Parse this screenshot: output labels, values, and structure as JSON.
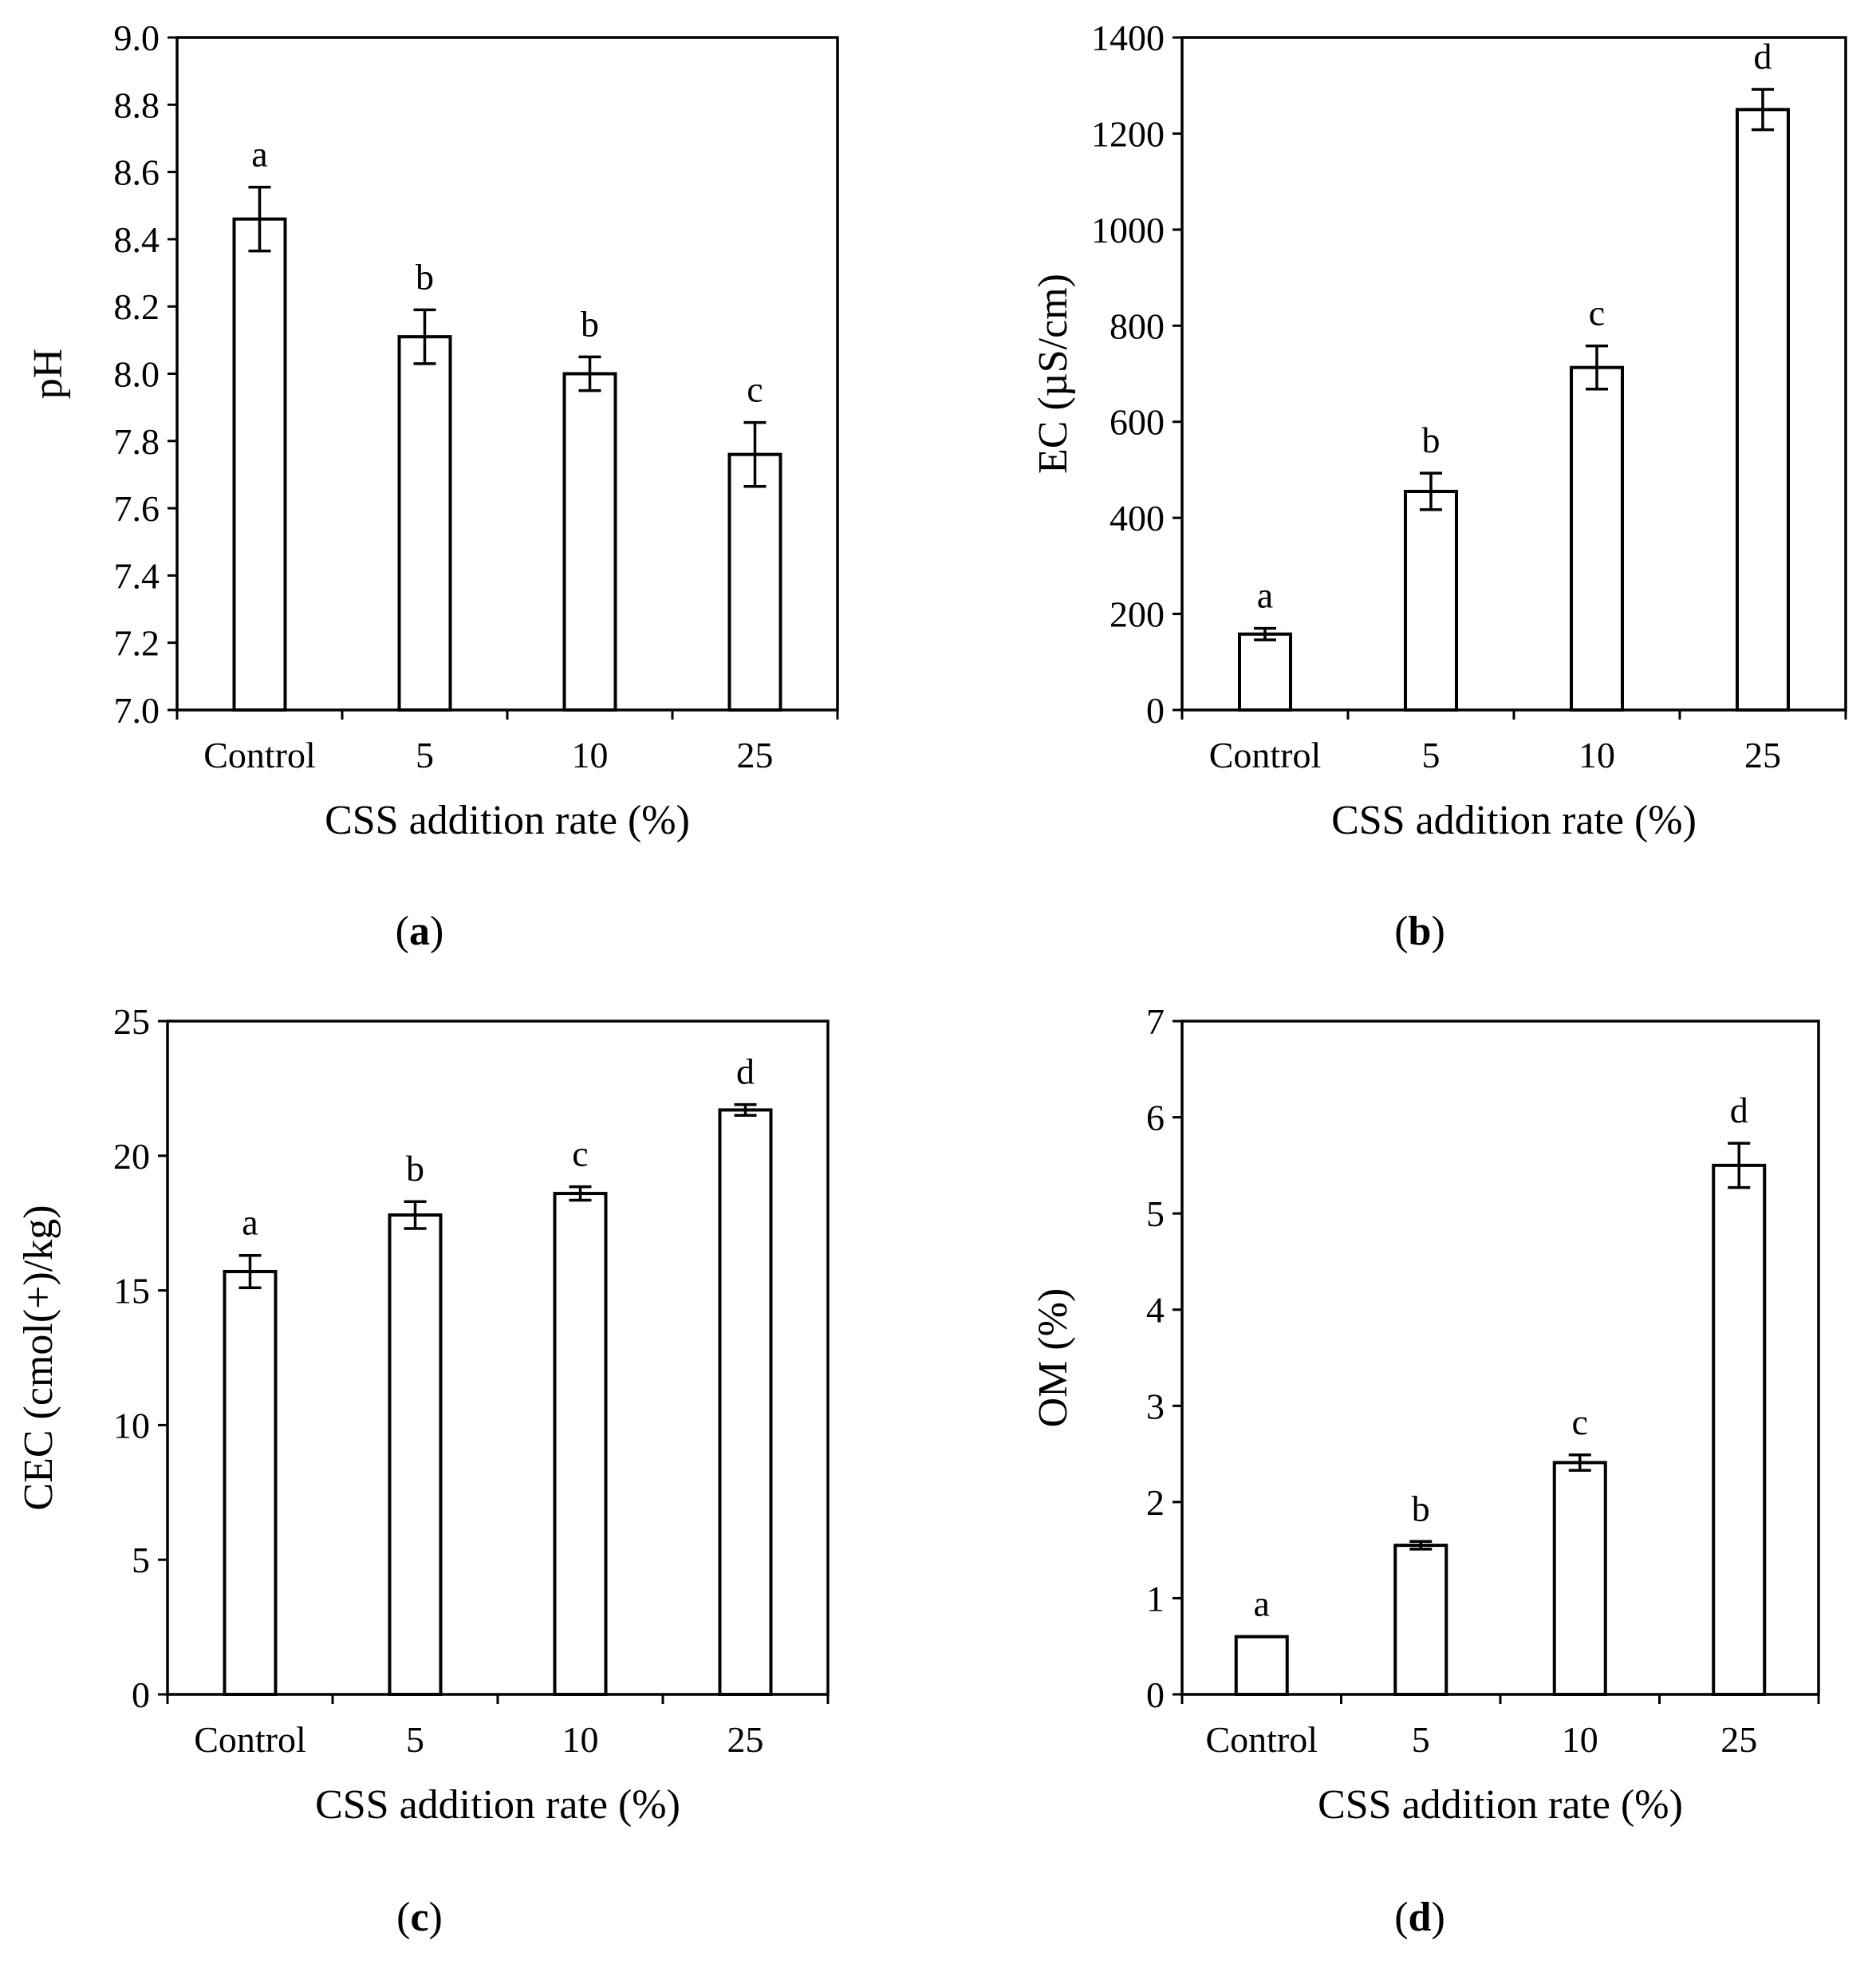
{
  "chart_data": [
    {
      "type": "bar",
      "panel_label": "a",
      "categories": [
        "Control",
        "5",
        "10",
        "25"
      ],
      "values": [
        8.46,
        8.11,
        8.0,
        7.76
      ],
      "errors": [
        0.095,
        0.08,
        0.05,
        0.095
      ],
      "significance": [
        "a",
        "b",
        "b",
        "c"
      ],
      "ylabel": "pH",
      "xlabel": "CSS addition rate (%)",
      "ylim": [
        7.0,
        9.0
      ],
      "yticks": [
        "7.0",
        "7.2",
        "7.4",
        "7.6",
        "7.8",
        "8.0",
        "8.2",
        "8.4",
        "8.6",
        "8.8",
        "9.0"
      ]
    },
    {
      "type": "bar",
      "panel_label": "b",
      "categories": [
        "Control",
        "5",
        "10",
        "25"
      ],
      "values": [
        158,
        455,
        713,
        1250
      ],
      "errors": [
        12,
        38,
        45,
        42
      ],
      "significance": [
        "a",
        "b",
        "c",
        "d"
      ],
      "ylabel": "EC (µS/cm)",
      "xlabel": "CSS addition rate (%)",
      "ylim": [
        0,
        1400
      ],
      "yticks": [
        "0",
        "200",
        "400",
        "600",
        "800",
        "1000",
        "1200",
        "1400"
      ]
    },
    {
      "type": "bar",
      "panel_label": "c",
      "categories": [
        "Control",
        "5",
        "10",
        "25"
      ],
      "values": [
        15.7,
        17.8,
        18.6,
        21.7
      ],
      "errors": [
        0.6,
        0.5,
        0.25,
        0.2
      ],
      "significance": [
        "a",
        "b",
        "c",
        "d"
      ],
      "ylabel": "CEC (cmol(+)/kg)",
      "xlabel": "CSS addition rate (%)",
      "ylim": [
        0,
        25
      ],
      "yticks": [
        "0",
        "5",
        "10",
        "15",
        "20",
        "25"
      ]
    },
    {
      "type": "bar",
      "panel_label": "d",
      "categories": [
        "Control",
        "5",
        "10",
        "25"
      ],
      "values": [
        0.6,
        1.55,
        2.41,
        5.5
      ],
      "errors": [
        0.0,
        0.04,
        0.08,
        0.23
      ],
      "significance": [
        "a",
        "b",
        "c",
        "d"
      ],
      "ylabel": "OM (%)",
      "xlabel": "CSS addition rate (%)",
      "ylim": [
        0,
        7
      ],
      "yticks": [
        "0",
        "1",
        "2",
        "3",
        "4",
        "5",
        "6",
        "7"
      ]
    }
  ]
}
